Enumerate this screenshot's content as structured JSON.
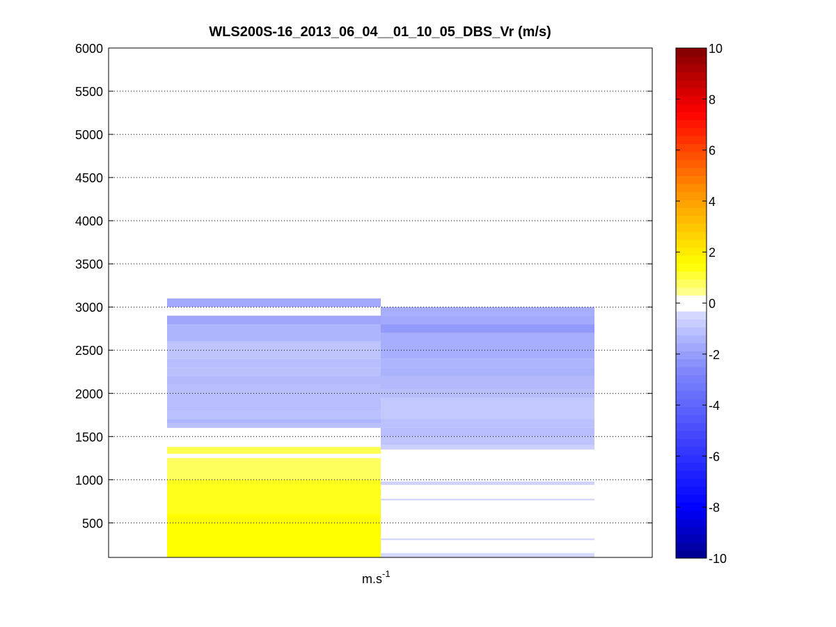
{
  "chart_data": {
    "type": "heatmap",
    "title": "WLS200S-16_2013_06_04__01_10_05_DBS_Vr (m/s)",
    "xlabel_base": "m.s",
    "xlabel_exp": "-1",
    "ylim": [
      100,
      6000
    ],
    "yticks": [
      500,
      1000,
      1500,
      2000,
      2500,
      3000,
      3500,
      4000,
      4500,
      5000,
      5500,
      6000
    ],
    "y_grid": true,
    "colorbar": {
      "clim": [
        -10,
        10
      ],
      "ticks": [
        -10,
        -8,
        -6,
        -4,
        -2,
        0,
        2,
        4,
        6,
        8,
        10
      ],
      "levels": 64,
      "position": "right"
    },
    "columns": [
      {
        "segments": [
          {
            "y0": 3000,
            "y1": 3100,
            "v": -1.7
          },
          {
            "y0": 2800,
            "y1": 2900,
            "v": -1.8
          },
          {
            "y0": 2600,
            "y1": 2800,
            "v": -1.4
          },
          {
            "y0": 2400,
            "y1": 2600,
            "v": -1.0
          },
          {
            "y0": 2300,
            "y1": 2400,
            "v": -1.2
          },
          {
            "y0": 2200,
            "y1": 2300,
            "v": -1.1
          },
          {
            "y0": 2100,
            "y1": 2200,
            "v": -1.3
          },
          {
            "y0": 1800,
            "y1": 2100,
            "v": -1.2
          },
          {
            "y0": 1700,
            "y1": 1800,
            "v": -1.1
          },
          {
            "y0": 1650,
            "y1": 1700,
            "v": -1.4
          },
          {
            "y0": 1600,
            "y1": 1650,
            "v": -1.1
          },
          {
            "y0": 1300,
            "y1": 1380,
            "v": 0.9
          },
          {
            "y0": 1000,
            "y1": 1250,
            "v": 0.8
          },
          {
            "y0": 600,
            "y1": 1000,
            "v": 1.3
          },
          {
            "y0": 100,
            "y1": 600,
            "v": 1.5
          }
        ]
      },
      {
        "segments": [
          {
            "y0": 2900,
            "y1": 3000,
            "v": -1.6
          },
          {
            "y0": 2800,
            "y1": 2900,
            "v": -1.7
          },
          {
            "y0": 2700,
            "y1": 2800,
            "v": -2.1
          },
          {
            "y0": 2400,
            "y1": 2700,
            "v": -1.6
          },
          {
            "y0": 2300,
            "y1": 2400,
            "v": -1.4
          },
          {
            "y0": 2200,
            "y1": 2300,
            "v": -1.5
          },
          {
            "y0": 2050,
            "y1": 2200,
            "v": -1.3
          },
          {
            "y0": 1950,
            "y1": 2050,
            "v": -1.2
          },
          {
            "y0": 1700,
            "y1": 1950,
            "v": -0.9
          },
          {
            "y0": 1600,
            "y1": 1700,
            "v": -1.1
          },
          {
            "y0": 1500,
            "y1": 1600,
            "v": -1.2
          },
          {
            "y0": 1400,
            "y1": 1500,
            "v": -1.0
          },
          {
            "y0": 1350,
            "y1": 1400,
            "v": -0.7
          },
          {
            "y0": 940,
            "y1": 980,
            "v": -0.6
          },
          {
            "y0": 760,
            "y1": 780,
            "v": -0.5
          },
          {
            "y0": 300,
            "y1": 320,
            "v": -0.5
          },
          {
            "y0": 100,
            "y1": 150,
            "v": -0.5
          }
        ]
      }
    ]
  }
}
